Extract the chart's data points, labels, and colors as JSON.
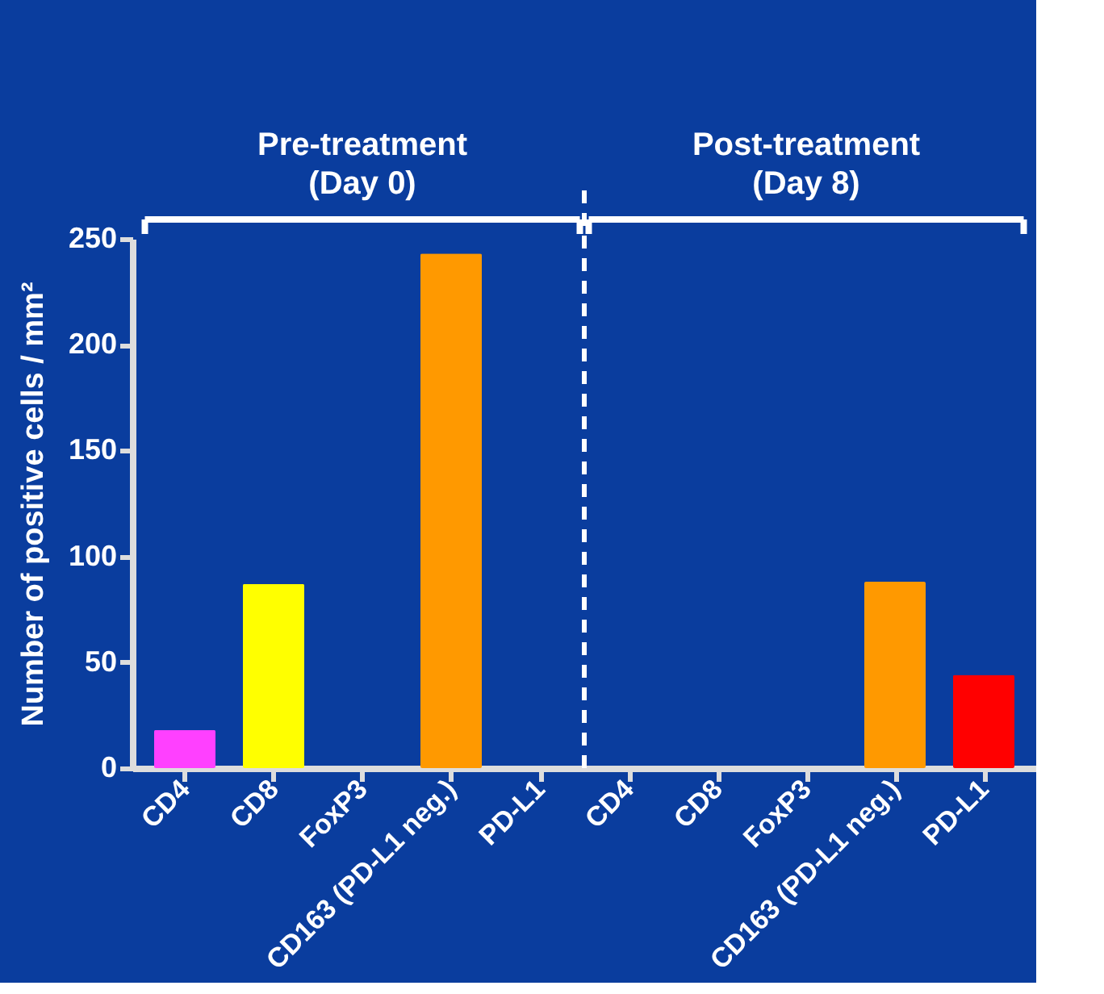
{
  "chart_data": {
    "type": "bar",
    "ylabel": "Number of positive cells / mm²",
    "categories": [
      "CD4",
      "CD8",
      "FoxP3",
      "CD163 (PD-L1 neg.)",
      "PD-L1",
      "CD4",
      "CD8",
      "FoxP3",
      "CD163 (PD-L1 neg.)",
      "PD-L1"
    ],
    "values": [
      18,
      87,
      0,
      243,
      0,
      0,
      0,
      0,
      88,
      44
    ],
    "colors": [
      "#ff40ff",
      "#ffff00",
      "#ff9900",
      "#ff9900",
      "#ff0000",
      "#ff40ff",
      "#ffff00",
      "#ff9900",
      "#ff9900",
      "#ff0000"
    ],
    "ylim": [
      0,
      250
    ],
    "yticks": [
      0,
      50,
      100,
      150,
      200,
      250
    ],
    "annotations": [
      "Pre-treatment\n(Day 0)",
      "Post-treatment\n(Day 8)"
    ],
    "grid": false
  }
}
